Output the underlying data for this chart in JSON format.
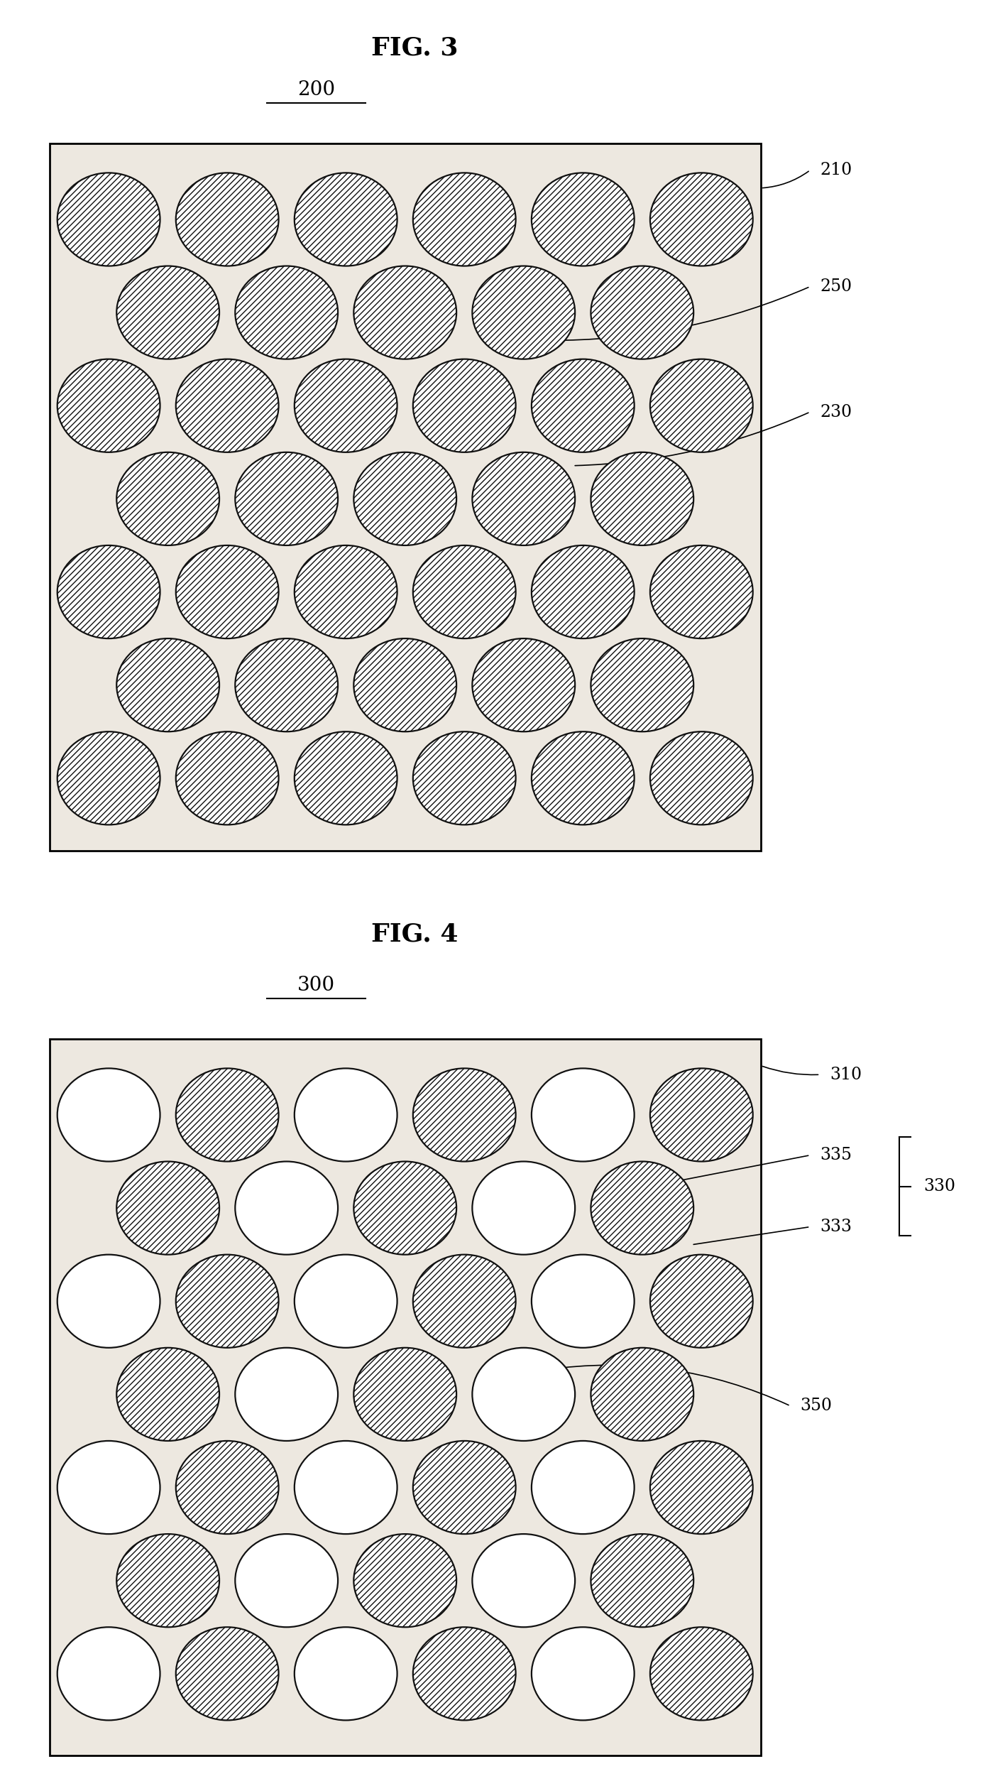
{
  "fig3_title": "FIG. 3",
  "fig3_label": "200",
  "fig4_title": "FIG. 4",
  "fig4_label": "300",
  "bg_color": "#ede8e0",
  "circle_edge_color": "#111111",
  "plate_edge_color": "#000000",
  "plate_lw": 2.0,
  "circle_lw": 1.6,
  "title_fontsize": 26,
  "label_fontsize": 20,
  "annot_fontsize": 17
}
